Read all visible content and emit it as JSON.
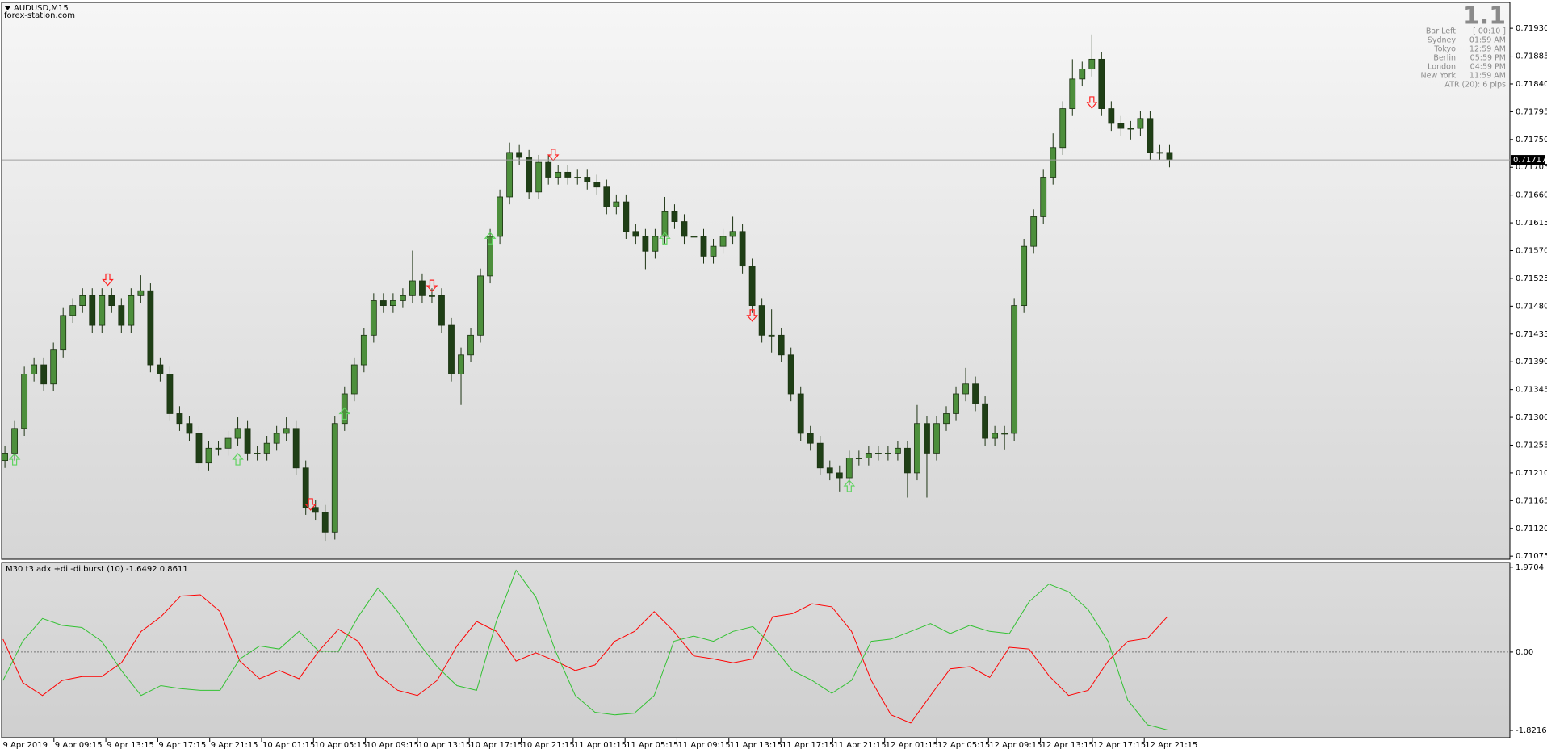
{
  "chart_data": [
    {
      "type": "candlestick",
      "title": "AUDUSD,M15",
      "subtitle": "forex-station.com",
      "up_color": "#4d8f3c",
      "down_color": "#1f3f16",
      "wick_color": "#1c3312",
      "xlim": [
        -0.34,
        155.07
      ],
      "ylim": [
        0.7107,
        0.71972
      ],
      "yticks": [
        {
          "value": 0.7193,
          "label": "0.71930"
        },
        0.71885,
        {
          "value": 0.7184,
          "label": "0.71840"
        },
        0.71795,
        {
          "value": 0.7175,
          "label": "0.71750"
        },
        0.71705,
        {
          "value": 0.7166,
          "label": "0.71660"
        },
        0.71615,
        {
          "value": 0.7157,
          "label": "0.71570"
        },
        0.71525,
        {
          "value": 0.7148,
          "label": "0.71480"
        },
        0.71435,
        {
          "value": 0.7139,
          "label": "0.71390"
        },
        0.71345,
        {
          "value": 0.713,
          "label": "0.71300"
        },
        0.71255,
        {
          "value": 0.7121,
          "label": "0.71210"
        },
        0.71165,
        {
          "value": 0.7112,
          "label": "0.71120"
        },
        0.71075
      ],
      "xticks": [
        {
          "value": -0.3,
          "label": "9 Apr 2019"
        },
        {
          "value": 5.05,
          "label": "9 Apr 09:15"
        },
        {
          "value": 10.4,
          "label": "9 Apr 13:15"
        },
        {
          "value": 15.75,
          "label": "9 Apr 17:15"
        },
        {
          "value": 21.1,
          "label": "9 Apr 21:15"
        },
        {
          "value": 26.45,
          "label": "10 Apr 01:15"
        },
        {
          "value": 31.8,
          "label": "10 Apr 05:15"
        },
        {
          "value": 37.15,
          "label": "10 Apr 09:15"
        },
        {
          "value": 42.5,
          "label": "10 Apr 13:15"
        },
        {
          "value": 47.85,
          "label": "10 Apr 17:15"
        },
        {
          "value": 53.2,
          "label": "10 Apr 21:15"
        },
        {
          "value": 58.55,
          "label": "11 Apr 01:15"
        },
        {
          "value": 63.9,
          "label": "11 Apr 05:15"
        },
        {
          "value": 69.25,
          "label": "11 Apr 09:15"
        },
        {
          "value": 74.6,
          "label": "11 Apr 13:15"
        },
        {
          "value": 79.95,
          "label": "11 Apr 17:15"
        },
        {
          "value": 85.3,
          "label": "11 Apr 21:15"
        },
        {
          "value": 90.65,
          "label": "12 Apr 01:15"
        },
        {
          "value": 96,
          "label": "12 Apr 05:15"
        },
        {
          "value": 101.35,
          "label": "12 Apr 09:15"
        },
        {
          "value": 106.7,
          "label": "12 Apr 13:15"
        },
        {
          "value": 112.05,
          "label": "12 Apr 17:15"
        },
        {
          "value": 117.4,
          "label": "12 Apr 21:15"
        }
      ],
      "current_price": 0.71717,
      "open": [
        0.7123,
        0.71242,
        0.71282,
        0.7137,
        0.71385,
        0.71354,
        0.71409,
        0.71465,
        0.71481,
        0.71497,
        0.71449,
        0.71497,
        0.71481,
        0.71449,
        0.71497,
        0.71505,
        0.71385,
        0.7137,
        0.71306,
        0.7129,
        0.71274,
        0.71226,
        0.7125,
        0.7125,
        0.71266,
        0.71282,
        0.71242,
        0.71242,
        0.71258,
        0.71274,
        0.71282,
        0.71218,
        0.71154,
        0.71146,
        0.71114,
        0.7129,
        0.71338,
        0.71385,
        0.71433,
        0.71489,
        0.71481,
        0.71489,
        0.71497,
        0.71521,
        0.71497,
        0.71497,
        0.71449,
        0.7137,
        0.71401,
        0.71433,
        0.71529,
        0.71593,
        0.71657,
        0.71729,
        0.71721,
        0.71665,
        0.71713,
        0.71689,
        0.71697,
        0.71689,
        0.71689,
        0.71681,
        0.71673,
        0.71641,
        0.71649,
        0.71601,
        0.71593,
        0.71569,
        0.71593,
        0.71633,
        0.71617,
        0.71593,
        0.71593,
        0.71561,
        0.71577,
        0.71593,
        0.71601,
        0.71545,
        0.71481,
        0.71433,
        0.71433,
        0.71401,
        0.71338,
        0.71274,
        0.71258,
        0.71218,
        0.7121,
        0.71202,
        0.71234,
        0.71234,
        0.71242,
        0.71242,
        0.71242,
        0.7125,
        0.7121,
        0.7129,
        0.71242,
        0.7129,
        0.71306,
        0.71338,
        0.71354,
        0.71322,
        0.71266,
        0.71274,
        0.71274,
        0.71481,
        0.71577,
        0.71625,
        0.71689,
        0.71737,
        0.718,
        0.71848,
        0.71864,
        0.7188,
        0.718,
        0.71776,
        0.71768,
        0.71768,
        0.71784,
        0.71729,
        0.71729
      ],
      "high": [
        0.71254,
        0.71294,
        0.71382,
        0.71397,
        0.71397,
        0.71421,
        0.71477,
        0.71493,
        0.71509,
        0.71509,
        0.71509,
        0.71509,
        0.71493,
        0.71509,
        0.7153,
        0.71517,
        0.71397,
        0.71382,
        0.71318,
        0.71302,
        0.71286,
        0.71262,
        0.71262,
        0.71278,
        0.713,
        0.71294,
        0.71254,
        0.7127,
        0.71286,
        0.713,
        0.71294,
        0.7123,
        0.71166,
        0.71158,
        0.71302,
        0.7135,
        0.71397,
        0.71445,
        0.71501,
        0.71501,
        0.71501,
        0.71509,
        0.7157,
        0.71533,
        0.71509,
        0.71509,
        0.71461,
        0.71413,
        0.71445,
        0.71541,
        0.71605,
        0.71669,
        0.71745,
        0.71741,
        0.71733,
        0.71725,
        0.71725,
        0.71709,
        0.71709,
        0.71701,
        0.71701,
        0.71693,
        0.71685,
        0.71661,
        0.71661,
        0.71613,
        0.71605,
        0.71605,
        0.71657,
        0.71645,
        0.71629,
        0.71605,
        0.71605,
        0.71589,
        0.71605,
        0.71625,
        0.71613,
        0.71557,
        0.71493,
        0.71475,
        0.71445,
        0.71413,
        0.7135,
        0.71286,
        0.7127,
        0.7123,
        0.71222,
        0.71246,
        0.71246,
        0.71254,
        0.71254,
        0.71254,
        0.71262,
        0.71262,
        0.7132,
        0.71302,
        0.71302,
        0.71318,
        0.7135,
        0.7138,
        0.71366,
        0.71334,
        0.71286,
        0.71286,
        0.71493,
        0.71589,
        0.71637,
        0.71701,
        0.7176,
        0.71812,
        0.7188,
        0.71876,
        0.7192,
        0.71892,
        0.71812,
        0.71788,
        0.7178,
        0.71796,
        0.71796,
        0.71741,
        0.71741
      ],
      "low": [
        0.71218,
        0.7123,
        0.7127,
        0.71358,
        0.71342,
        0.71342,
        0.71397,
        0.71453,
        0.71469,
        0.71437,
        0.71437,
        0.71469,
        0.71437,
        0.71437,
        0.71485,
        0.71373,
        0.71358,
        0.71294,
        0.71278,
        0.71262,
        0.71214,
        0.71214,
        0.71238,
        0.71238,
        0.71254,
        0.7123,
        0.7123,
        0.7123,
        0.71246,
        0.71262,
        0.71206,
        0.71142,
        0.71134,
        0.711,
        0.71102,
        0.71278,
        0.71326,
        0.71373,
        0.71421,
        0.71469,
        0.71469,
        0.71477,
        0.71485,
        0.71485,
        0.71485,
        0.71437,
        0.71358,
        0.7132,
        0.71389,
        0.71421,
        0.71517,
        0.71581,
        0.71645,
        0.71709,
        0.71653,
        0.71653,
        0.71677,
        0.71677,
        0.71677,
        0.71677,
        0.71669,
        0.71661,
        0.71629,
        0.71629,
        0.71589,
        0.71581,
        0.7154,
        0.71557,
        0.71581,
        0.71605,
        0.71581,
        0.71581,
        0.71549,
        0.71549,
        0.71565,
        0.71581,
        0.71533,
        0.71469,
        0.71421,
        0.71405,
        0.71389,
        0.71326,
        0.71262,
        0.71246,
        0.71206,
        0.71198,
        0.7118,
        0.7119,
        0.71222,
        0.71222,
        0.7123,
        0.7123,
        0.7123,
        0.7117,
        0.71198,
        0.7117,
        0.7123,
        0.71278,
        0.71294,
        0.71326,
        0.7131,
        0.71254,
        0.71254,
        0.71248,
        0.71262,
        0.71469,
        0.71565,
        0.71613,
        0.71677,
        0.71725,
        0.71788,
        0.71836,
        0.71852,
        0.71788,
        0.71764,
        0.71756,
        0.7175,
        0.71756,
        0.71717,
        0.71717,
        0.71705
      ],
      "close": [
        0.71242,
        0.71282,
        0.7137,
        0.71385,
        0.71354,
        0.71409,
        0.71465,
        0.71481,
        0.71497,
        0.71449,
        0.71497,
        0.71481,
        0.71449,
        0.71497,
        0.71505,
        0.71385,
        0.7137,
        0.71306,
        0.7129,
        0.71274,
        0.71226,
        0.7125,
        0.7125,
        0.71266,
        0.71282,
        0.71242,
        0.71242,
        0.71258,
        0.71274,
        0.71282,
        0.71218,
        0.71154,
        0.71146,
        0.71114,
        0.7129,
        0.71338,
        0.71385,
        0.71433,
        0.71489,
        0.71481,
        0.71489,
        0.71497,
        0.71521,
        0.71497,
        0.71497,
        0.71449,
        0.7137,
        0.71401,
        0.71433,
        0.71529,
        0.71593,
        0.71657,
        0.71729,
        0.71721,
        0.71665,
        0.71713,
        0.71689,
        0.71697,
        0.71689,
        0.71689,
        0.71681,
        0.71673,
        0.71641,
        0.71649,
        0.71601,
        0.71593,
        0.71569,
        0.71593,
        0.71633,
        0.71617,
        0.71593,
        0.71593,
        0.71561,
        0.71577,
        0.71593,
        0.71601,
        0.71545,
        0.71481,
        0.71433,
        0.71433,
        0.71401,
        0.71338,
        0.71274,
        0.71258,
        0.71218,
        0.7121,
        0.71202,
        0.71234,
        0.71234,
        0.71242,
        0.71242,
        0.71242,
        0.7125,
        0.7121,
        0.7129,
        0.71242,
        0.7129,
        0.71306,
        0.71338,
        0.71354,
        0.71322,
        0.71266,
        0.71274,
        0.71274,
        0.71481,
        0.71577,
        0.71625,
        0.71689,
        0.71737,
        0.718,
        0.71848,
        0.71864,
        0.7188,
        0.718,
        0.71776,
        0.71768,
        0.71768,
        0.71784,
        0.71729,
        0.71729,
        0.71717
      ],
      "markers": [
        {
          "direction": "up",
          "color": "#5fd35f",
          "x": [
            1,
            24,
            35,
            50,
            68,
            87
          ],
          "values": [
            0.71232,
            0.71232,
            0.71306,
            0.7159,
            0.7159,
            0.71189
          ]
        },
        {
          "direction": "down",
          "color": "#ff2020",
          "x": [
            10.6,
            31.5,
            44,
            56.5,
            77,
            112
          ],
          "values": [
            0.71523,
            0.71159,
            0.71513,
            0.71725,
            0.71465,
            0.7181
          ]
        }
      ]
    },
    {
      "type": "line",
      "title": "M30 t3 adx +di -di burst (10) -1.6492 0.8611",
      "xlim": [
        -0.07,
        76.36
      ],
      "ylim": [
        -1.99,
        2.08
      ],
      "yticks": [
        1.9704,
        {
          "value": 0,
          "label": "0.00"
        },
        -1.8216
      ],
      "level": 0,
      "series": [
        {
          "color": "#ff0000",
          "values": [
            0.3,
            -0.71,
            -1.01,
            -0.66,
            -0.57,
            -0.57,
            -0.25,
            0.48,
            0.82,
            1.3,
            1.33,
            0.94,
            -0.21,
            -0.62,
            -0.43,
            -0.62,
            0.02,
            0.53,
            0.25,
            -0.53,
            -0.89,
            -1.01,
            -0.66,
            0.14,
            0.71,
            0.48,
            -0.21,
            -0.02,
            -0.21,
            -0.43,
            -0.3,
            0.25,
            0.48,
            0.94,
            0.48,
            -0.09,
            -0.16,
            -0.25,
            -0.16,
            0.82,
            0.89,
            1.12,
            1.05,
            0.48,
            -0.66,
            -1.46,
            -1.65,
            -1.01,
            -0.39,
            -0.34,
            -0.59,
            0.11,
            0.07,
            -0.55,
            -1.01,
            -0.89,
            -0.21,
            0.25,
            0.32,
            0.82
          ]
        },
        {
          "color": "#33c233",
          "values": [
            -0.66,
            0.25,
            0.78,
            0.62,
            0.57,
            0.25,
            -0.43,
            -1.01,
            -0.78,
            -0.85,
            -0.89,
            -0.89,
            -0.16,
            0.14,
            0.07,
            0.48,
            0.02,
            0.02,
            0.82,
            1.49,
            0.94,
            0.25,
            -0.34,
            -0.78,
            -0.89,
            0.71,
            1.9,
            1.28,
            0.02,
            -1.01,
            -1.4,
            -1.46,
            -1.42,
            -1.01,
            0.25,
            0.37,
            0.25,
            0.48,
            0.59,
            0.14,
            -0.43,
            -0.66,
            -0.96,
            -0.66,
            0.25,
            0.3,
            0.48,
            0.66,
            0.43,
            0.62,
            0.48,
            0.43,
            1.17,
            1.58,
            1.4,
            0.98,
            0.25,
            -1.12,
            -1.69,
            -1.81
          ]
        }
      ]
    }
  ],
  "info_panel": {
    "value": 1.1,
    "rows": [
      [
        "Bar Left",
        "[ 00:10 ]"
      ],
      [
        "Sydney",
        "01:59 AM"
      ],
      [
        "Tokyo",
        "12:59 AM"
      ],
      [
        "Berlin",
        "05:59 PM"
      ],
      [
        "London",
        "04:59 PM"
      ],
      [
        "New York",
        "11:59 AM"
      ]
    ],
    "atr": "ATR (20): 6 pips"
  }
}
